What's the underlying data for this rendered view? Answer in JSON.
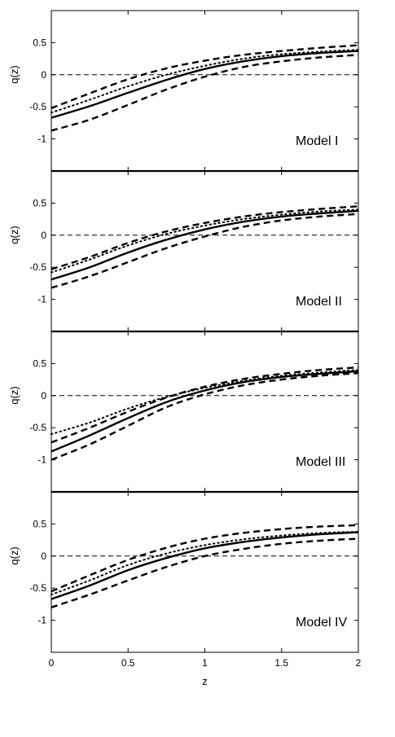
{
  "chart_data": [
    {
      "type": "line",
      "annotation": "Model I",
      "ylabel": "q(z)",
      "xlim": [
        0,
        2
      ],
      "ylim": [
        -1.5,
        1.0
      ],
      "x_ticks": [
        "0",
        "0.5",
        "1",
        "1.5",
        "2"
      ],
      "y_ticks": [
        {
          "v": 0.5,
          "t": "0.5"
        },
        {
          "v": 0,
          "t": "0"
        },
        {
          "v": -0.5,
          "t": "-0.5"
        },
        {
          "v": -1,
          "t": "-1"
        }
      ],
      "reference_line_y": 0,
      "series": [
        {
          "style": "solid",
          "x": [
            0,
            0.25,
            0.5,
            0.75,
            1.0,
            1.25,
            1.5,
            1.75,
            2.0
          ],
          "y": [
            -0.67,
            -0.49,
            -0.28,
            -0.08,
            0.09,
            0.21,
            0.29,
            0.34,
            0.37
          ]
        },
        {
          "style": "dotted",
          "x": [
            0,
            0.25,
            0.5,
            0.75,
            1.0,
            1.25,
            1.5,
            1.75,
            2.0
          ],
          "y": [
            -0.59,
            -0.39,
            -0.18,
            0.0,
            0.14,
            0.25,
            0.32,
            0.36,
            0.39
          ]
        },
        {
          "style": "dashed",
          "x": [
            0,
            0.25,
            0.5,
            0.75,
            1.0,
            1.25,
            1.5,
            1.75,
            2.0
          ],
          "y": [
            -0.52,
            -0.29,
            -0.07,
            0.1,
            0.22,
            0.31,
            0.37,
            0.42,
            0.46
          ]
        },
        {
          "style": "dashed",
          "x": [
            0,
            0.25,
            0.5,
            0.75,
            1.0,
            1.25,
            1.5,
            1.75,
            2.0
          ],
          "y": [
            -0.87,
            -0.7,
            -0.47,
            -0.23,
            -0.03,
            0.12,
            0.21,
            0.27,
            0.31
          ]
        }
      ]
    },
    {
      "type": "line",
      "annotation": "Model II",
      "ylabel": "q(z)",
      "xlim": [
        0,
        2
      ],
      "ylim": [
        -1.5,
        1.0
      ],
      "x_ticks": [
        "0",
        "0.5",
        "1",
        "1.5",
        "2"
      ],
      "y_ticks": [
        {
          "v": 0.5,
          "t": "0.5"
        },
        {
          "v": 0,
          "t": "0"
        },
        {
          "v": -0.5,
          "t": "-0.5"
        },
        {
          "v": -1,
          "t": "-1"
        }
      ],
      "reference_line_y": 0,
      "series": [
        {
          "style": "solid",
          "x": [
            0,
            0.25,
            0.5,
            0.75,
            1.0,
            1.25,
            1.5,
            1.75,
            2.0
          ],
          "y": [
            -0.69,
            -0.5,
            -0.27,
            -0.07,
            0.09,
            0.21,
            0.29,
            0.34,
            0.38
          ]
        },
        {
          "style": "dotted",
          "x": [
            0,
            0.25,
            0.5,
            0.75,
            1.0,
            1.25,
            1.5,
            1.75,
            2.0
          ],
          "y": [
            -0.58,
            -0.38,
            -0.16,
            0.02,
            0.15,
            0.25,
            0.32,
            0.37,
            0.4
          ]
        },
        {
          "style": "dashed",
          "x": [
            0,
            0.25,
            0.5,
            0.75,
            1.0,
            1.25,
            1.5,
            1.75,
            2.0
          ],
          "y": [
            -0.53,
            -0.34,
            -0.12,
            0.06,
            0.19,
            0.29,
            0.36,
            0.41,
            0.45
          ]
        },
        {
          "style": "dashed",
          "x": [
            0,
            0.25,
            0.5,
            0.75,
            1.0,
            1.25,
            1.5,
            1.75,
            2.0
          ],
          "y": [
            -0.82,
            -0.64,
            -0.42,
            -0.2,
            -0.02,
            0.13,
            0.23,
            0.29,
            0.33
          ]
        }
      ]
    },
    {
      "type": "line",
      "annotation": "Model III",
      "ylabel": "q(z)",
      "xlim": [
        0,
        2
      ],
      "ylim": [
        -1.5,
        1.0
      ],
      "x_ticks": [
        "0",
        "0.5",
        "1",
        "1.5",
        "2"
      ],
      "y_ticks": [
        {
          "v": 0.5,
          "t": "0.5"
        },
        {
          "v": 0,
          "t": "0"
        },
        {
          "v": -0.5,
          "t": "-0.5"
        },
        {
          "v": -1,
          "t": "-1"
        }
      ],
      "reference_line_y": 0,
      "series": [
        {
          "style": "solid",
          "x": [
            0,
            0.25,
            0.5,
            0.75,
            1.0,
            1.25,
            1.5,
            1.75,
            2.0
          ],
          "y": [
            -0.87,
            -0.62,
            -0.35,
            -0.1,
            0.08,
            0.21,
            0.29,
            0.34,
            0.38
          ]
        },
        {
          "style": "dotted",
          "x": [
            0,
            0.25,
            0.5,
            0.75,
            1.0,
            1.25,
            1.5,
            1.75,
            2.0
          ],
          "y": [
            -0.6,
            -0.42,
            -0.2,
            -0.02,
            0.12,
            0.23,
            0.31,
            0.36,
            0.4
          ]
        },
        {
          "style": "dashed",
          "x": [
            0,
            0.25,
            0.5,
            0.75,
            1.0,
            1.25,
            1.5,
            1.75,
            2.0
          ],
          "y": [
            -0.73,
            -0.5,
            -0.25,
            -0.03,
            0.14,
            0.26,
            0.34,
            0.4,
            0.44
          ]
        },
        {
          "style": "dashed",
          "x": [
            0,
            0.25,
            0.5,
            0.75,
            1.0,
            1.25,
            1.5,
            1.75,
            2.0
          ],
          "y": [
            -1.0,
            -0.76,
            -0.47,
            -0.18,
            0.02,
            0.16,
            0.25,
            0.31,
            0.35
          ]
        }
      ]
    },
    {
      "type": "line",
      "annotation": "Model IV",
      "ylabel": "q(z)",
      "xlabel": "z",
      "xlim": [
        0,
        2
      ],
      "ylim": [
        -1.5,
        1.0
      ],
      "x_ticks": [
        "0",
        "0.5",
        "1",
        "1.5",
        "2"
      ],
      "y_ticks": [
        {
          "v": 0.5,
          "t": "0.5"
        },
        {
          "v": 0,
          "t": "0"
        },
        {
          "v": -0.5,
          "t": "-0.5"
        },
        {
          "v": -1,
          "t": "-1"
        }
      ],
      "reference_line_y": 0,
      "series": [
        {
          "style": "solid",
          "x": [
            0,
            0.25,
            0.5,
            0.75,
            1.0,
            1.25,
            1.5,
            1.75,
            2.0
          ],
          "y": [
            -0.67,
            -0.46,
            -0.22,
            -0.03,
            0.12,
            0.22,
            0.29,
            0.34,
            0.37
          ]
        },
        {
          "style": "dotted",
          "x": [
            0,
            0.25,
            0.5,
            0.75,
            1.0,
            1.25,
            1.5,
            1.75,
            2.0
          ],
          "y": [
            -0.6,
            -0.38,
            -0.14,
            0.04,
            0.17,
            0.26,
            0.32,
            0.36,
            0.38
          ]
        },
        {
          "style": "dashed",
          "x": [
            0,
            0.25,
            0.5,
            0.75,
            1.0,
            1.25,
            1.5,
            1.75,
            2.0
          ],
          "y": [
            -0.55,
            -0.3,
            -0.06,
            0.13,
            0.27,
            0.36,
            0.42,
            0.46,
            0.48
          ]
        },
        {
          "style": "dashed",
          "x": [
            0,
            0.25,
            0.5,
            0.75,
            1.0,
            1.25,
            1.5,
            1.75,
            2.0
          ],
          "y": [
            -0.8,
            -0.6,
            -0.38,
            -0.17,
            0.0,
            0.11,
            0.19,
            0.24,
            0.27
          ]
        }
      ]
    }
  ]
}
